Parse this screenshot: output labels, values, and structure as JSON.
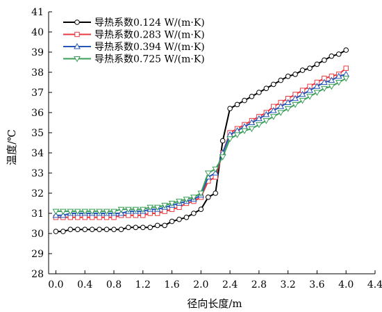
{
  "chart_data": {
    "type": "line",
    "xlabel": "径向长度/m",
    "ylabel": "温度/℃",
    "xlim": [
      -0.1,
      4.4
    ],
    "ylim": [
      28,
      41
    ],
    "xticks": [
      "0.0",
      "0.4",
      "0.8",
      "1.2",
      "1.6",
      "2.0",
      "2.4",
      "2.8",
      "3.2",
      "3.6",
      "4.0",
      "4.4"
    ],
    "yticks": [
      "28",
      "29",
      "30",
      "31",
      "32",
      "33",
      "34",
      "35",
      "36",
      "37",
      "38",
      "39",
      "40",
      "41"
    ],
    "legend_position": "top-left",
    "grid": false,
    "series": [
      {
        "name": "导热系数0.124 W/(m·K)",
        "color": "#000000",
        "marker": "circle",
        "x": [
          0.0,
          0.1,
          0.2,
          0.3,
          0.4,
          0.5,
          0.6,
          0.7,
          0.8,
          0.9,
          1.0,
          1.1,
          1.2,
          1.3,
          1.4,
          1.5,
          1.6,
          1.7,
          1.8,
          1.9,
          2.0,
          2.1,
          2.2,
          2.3,
          2.4,
          2.5,
          2.6,
          2.7,
          2.8,
          2.9,
          3.0,
          3.1,
          3.2,
          3.3,
          3.4,
          3.5,
          3.6,
          3.7,
          3.8,
          3.9,
          4.0
        ],
        "y": [
          30.1,
          30.1,
          30.2,
          30.2,
          30.2,
          30.2,
          30.2,
          30.2,
          30.2,
          30.2,
          30.3,
          30.3,
          30.3,
          30.3,
          30.4,
          30.4,
          30.6,
          30.7,
          30.8,
          31.0,
          31.2,
          31.8,
          32.0,
          34.6,
          36.2,
          36.4,
          36.6,
          36.8,
          37.0,
          37.2,
          37.4,
          37.6,
          37.8,
          37.9,
          38.1,
          38.2,
          38.4,
          38.6,
          38.8,
          38.9,
          39.1
        ]
      },
      {
        "name": "导热系数0.283 W/(m·K)",
        "color": "#e8383f",
        "marker": "square",
        "x": [
          0.0,
          0.1,
          0.2,
          0.3,
          0.4,
          0.5,
          0.6,
          0.7,
          0.8,
          0.9,
          1.0,
          1.1,
          1.2,
          1.3,
          1.4,
          1.5,
          1.6,
          1.7,
          1.8,
          1.9,
          2.0,
          2.1,
          2.2,
          2.3,
          2.4,
          2.5,
          2.6,
          2.7,
          2.8,
          2.9,
          3.0,
          3.1,
          3.2,
          3.3,
          3.4,
          3.5,
          3.6,
          3.7,
          3.8,
          3.9,
          4.0
        ],
        "y": [
          30.8,
          30.8,
          30.8,
          30.8,
          30.8,
          30.8,
          30.8,
          30.8,
          30.8,
          30.9,
          30.9,
          30.9,
          30.9,
          31.0,
          31.0,
          31.1,
          31.2,
          31.3,
          31.5,
          31.6,
          31.8,
          32.6,
          32.8,
          34.0,
          35.0,
          35.2,
          35.4,
          35.6,
          35.8,
          36.0,
          36.3,
          36.5,
          36.7,
          36.9,
          37.1,
          37.3,
          37.5,
          37.7,
          37.8,
          37.9,
          38.2
        ]
      },
      {
        "name": "导热系数0.394 W/(m·K)",
        "color": "#2456b8",
        "marker": "triangle-up",
        "x": [
          0.0,
          0.1,
          0.2,
          0.3,
          0.4,
          0.5,
          0.6,
          0.7,
          0.8,
          0.9,
          1.0,
          1.1,
          1.2,
          1.3,
          1.4,
          1.5,
          1.6,
          1.7,
          1.8,
          1.9,
          2.0,
          2.1,
          2.2,
          2.3,
          2.4,
          2.5,
          2.6,
          2.7,
          2.8,
          2.9,
          3.0,
          3.1,
          3.2,
          3.3,
          3.4,
          3.5,
          3.6,
          3.7,
          3.8,
          3.9,
          4.0
        ],
        "y": [
          30.9,
          30.9,
          31.0,
          31.0,
          31.0,
          31.0,
          31.0,
          31.0,
          31.0,
          31.0,
          31.1,
          31.1,
          31.1,
          31.2,
          31.2,
          31.3,
          31.4,
          31.5,
          31.6,
          31.7,
          31.9,
          32.8,
          33.0,
          34.0,
          34.9,
          35.1,
          35.3,
          35.5,
          35.7,
          35.9,
          36.1,
          36.3,
          36.5,
          36.7,
          36.9,
          37.1,
          37.3,
          37.5,
          37.6,
          37.8,
          37.9
        ]
      },
      {
        "name": "导热系数0.725 W/(m·K)",
        "color": "#3a9e57",
        "marker": "triangle-down",
        "x": [
          0.0,
          0.1,
          0.2,
          0.3,
          0.4,
          0.5,
          0.6,
          0.7,
          0.8,
          0.9,
          1.0,
          1.1,
          1.2,
          1.3,
          1.4,
          1.5,
          1.6,
          1.7,
          1.8,
          1.9,
          2.0,
          2.1,
          2.2,
          2.3,
          2.4,
          2.5,
          2.6,
          2.7,
          2.8,
          2.9,
          3.0,
          3.1,
          3.2,
          3.3,
          3.4,
          3.5,
          3.6,
          3.7,
          3.8,
          3.9,
          4.0
        ],
        "y": [
          31.1,
          31.1,
          31.1,
          31.1,
          31.1,
          31.1,
          31.1,
          31.1,
          31.1,
          31.2,
          31.2,
          31.2,
          31.2,
          31.3,
          31.3,
          31.4,
          31.5,
          31.6,
          31.7,
          31.8,
          32.0,
          33.0,
          33.2,
          33.8,
          34.7,
          34.9,
          35.1,
          35.2,
          35.4,
          35.6,
          35.8,
          36.0,
          36.2,
          36.4,
          36.6,
          36.8,
          37.0,
          37.2,
          37.3,
          37.5,
          37.7
        ]
      }
    ]
  }
}
